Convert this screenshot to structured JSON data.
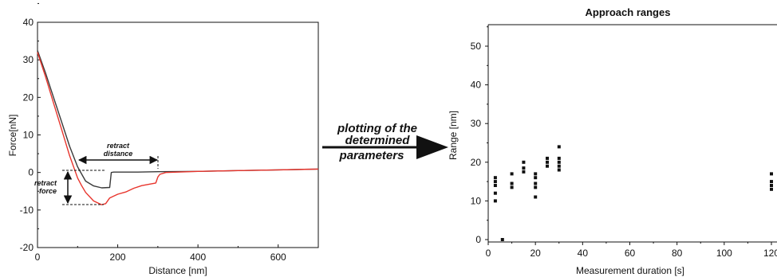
{
  "chart_data": [
    {
      "type": "line",
      "xlabel": "Distance [nm]",
      "ylabel": "Force[nN]",
      "xlim": [
        0,
        700
      ],
      "ylim": [
        -20,
        40
      ],
      "x_ticks": [
        "0",
        "200",
        "400",
        "600"
      ],
      "y_ticks": [
        "-20",
        "-10",
        "0",
        "10",
        "20",
        "30",
        "40"
      ],
      "series": [
        {
          "color": "#3a3a3a",
          "x": [
            0,
            20,
            40,
            60,
            80,
            100,
            120,
            140,
            160,
            180,
            184,
            190,
            250,
            300,
            400,
            500,
            600,
            700
          ],
          "y": [
            32.5,
            26.5,
            20,
            13.5,
            7,
            1.5,
            -2.3,
            -3.6,
            -4.1,
            -4,
            0,
            0.1,
            0.1,
            0.2,
            0.3,
            0.5,
            0.7,
            0.9
          ]
        },
        {
          "color": "#e8342c",
          "x": [
            0,
            20,
            40,
            60,
            80,
            100,
            110,
            120,
            140,
            160,
            170,
            180,
            190,
            200,
            220,
            240,
            260,
            280,
            295,
            300,
            305,
            320,
            400,
            500,
            600,
            700
          ],
          "y": [
            32,
            25.5,
            18.5,
            11.5,
            4.5,
            -1.5,
            -3.5,
            -5.3,
            -7.6,
            -8.6,
            -8.3,
            -6.8,
            -6.3,
            -5.8,
            -5.2,
            -4.2,
            -3.5,
            -3.1,
            -2.8,
            -1.2,
            -0.5,
            0,
            0.3,
            0.5,
            0.7,
            0.9
          ]
        }
      ],
      "annotations": {
        "retract_distance": [
          "retract",
          "distance"
        ],
        "retract_force": [
          "retract",
          "force"
        ]
      }
    },
    {
      "type": "scatter",
      "title": "Approach ranges",
      "xlabel": "Measurement duration [s]",
      "ylabel": "Range [nm]",
      "xlim": [
        0,
        125
      ],
      "ylim": [
        -1,
        55
      ],
      "x_ticks": [
        "0",
        "20",
        "40",
        "60",
        "80",
        "100",
        "120"
      ],
      "y_ticks": [
        "0",
        "10",
        "20",
        "30",
        "40",
        "50"
      ],
      "points": [
        [
          3,
          10
        ],
        [
          3,
          12
        ],
        [
          3,
          14
        ],
        [
          3,
          15
        ],
        [
          3,
          16
        ],
        [
          6,
          0
        ],
        [
          10,
          13.5
        ],
        [
          10,
          14.5
        ],
        [
          10,
          17
        ],
        [
          15,
          17.5
        ],
        [
          15,
          18.5
        ],
        [
          15,
          20
        ],
        [
          20,
          11
        ],
        [
          20,
          13.5
        ],
        [
          20,
          14.5
        ],
        [
          20,
          16
        ],
        [
          20,
          17
        ],
        [
          25,
          19
        ],
        [
          25,
          20
        ],
        [
          25,
          21
        ],
        [
          30,
          18
        ],
        [
          30,
          19
        ],
        [
          30,
          20
        ],
        [
          30,
          21
        ],
        [
          30,
          24
        ],
        [
          120,
          13
        ],
        [
          120,
          14
        ],
        [
          120,
          15
        ],
        [
          120,
          17
        ]
      ]
    }
  ],
  "arrow_label": [
    "plotting of the",
    "determined",
    "parameters"
  ]
}
